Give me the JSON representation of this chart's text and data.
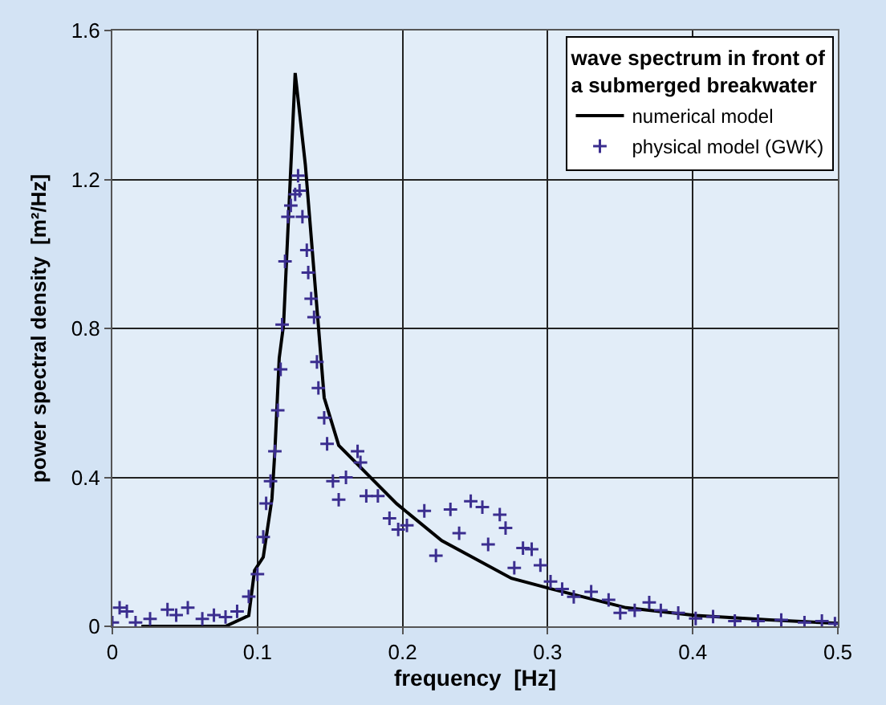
{
  "chart_data": {
    "type": "line",
    "xlabel": "frequency  [Hz]",
    "ylabel": "power spectral density  [m²/Hz]",
    "legend_title": "wave spectrum in front of\na submerged breakwater",
    "xlim": [
      0,
      0.5
    ],
    "xticks": [
      0,
      0.1,
      0.2,
      0.3,
      0.4,
      0.5
    ],
    "ylim": [
      0,
      1.6
    ],
    "yticks": [
      0,
      0.4,
      0.8,
      1.2,
      1.6
    ],
    "grid": true,
    "legend": "top right",
    "series": [
      {
        "name": "numerical model",
        "color": "#000000",
        "marker": "none",
        "line_style": "solid",
        "x": [
          0.02,
          0.078,
          0.094,
          0.098,
          0.104,
          0.11,
          0.112,
          0.115,
          0.118,
          0.126,
          0.133,
          0.146,
          0.156,
          0.196,
          0.227,
          0.275,
          0.303,
          0.354,
          0.402,
          0.453,
          0.5
        ],
        "values": [
          0,
          0,
          0.029,
          0.15,
          0.186,
          0.343,
          0.47,
          0.72,
          0.81,
          1.486,
          1.24,
          0.614,
          0.486,
          0.329,
          0.23,
          0.129,
          0.1,
          0.05,
          0.029,
          0.017,
          0.008
        ]
      },
      {
        "name": "physical model (GWK)",
        "type": "scatter",
        "color": "#3b2e8f",
        "marker": "cross",
        "x": [
          0.0,
          0.005,
          0.01,
          0.016,
          0.026,
          0.038,
          0.044,
          0.052,
          0.062,
          0.07,
          0.078,
          0.086,
          0.094,
          0.1,
          0.104,
          0.106,
          0.109,
          0.112,
          0.114,
          0.116,
          0.117,
          0.119,
          0.121,
          0.123,
          0.126,
          0.128,
          0.129,
          0.131,
          0.134,
          0.135,
          0.137,
          0.139,
          0.141,
          0.142,
          0.146,
          0.148,
          0.152,
          0.156,
          0.161,
          0.169,
          0.171,
          0.175,
          0.183,
          0.191,
          0.197,
          0.203,
          0.215,
          0.223,
          0.233,
          0.239,
          0.247,
          0.255,
          0.259,
          0.267,
          0.271,
          0.277,
          0.283,
          0.289,
          0.295,
          0.302,
          0.31,
          0.318,
          0.33,
          0.342,
          0.35,
          0.36,
          0.37,
          0.378,
          0.39,
          0.402,
          0.414,
          0.429,
          0.445,
          0.461,
          0.477,
          0.489,
          0.498
        ],
        "values": [
          0.01,
          0.05,
          0.04,
          0.01,
          0.02,
          0.045,
          0.03,
          0.05,
          0.02,
          0.03,
          0.025,
          0.04,
          0.08,
          0.14,
          0.24,
          0.33,
          0.39,
          0.47,
          0.58,
          0.69,
          0.81,
          0.98,
          1.1,
          1.13,
          1.16,
          1.21,
          1.17,
          1.1,
          1.01,
          0.95,
          0.88,
          0.83,
          0.71,
          0.64,
          0.56,
          0.49,
          0.39,
          0.34,
          0.4,
          0.47,
          0.44,
          0.35,
          0.35,
          0.29,
          0.26,
          0.271,
          0.31,
          0.19,
          0.314,
          0.25,
          0.336,
          0.32,
          0.22,
          0.3,
          0.264,
          0.157,
          0.21,
          0.207,
          0.164,
          0.12,
          0.1,
          0.079,
          0.093,
          0.071,
          0.036,
          0.043,
          0.064,
          0.043,
          0.036,
          0.021,
          0.026,
          0.014,
          0.014,
          0.017,
          0.01,
          0.014,
          0.007
        ]
      }
    ]
  }
}
